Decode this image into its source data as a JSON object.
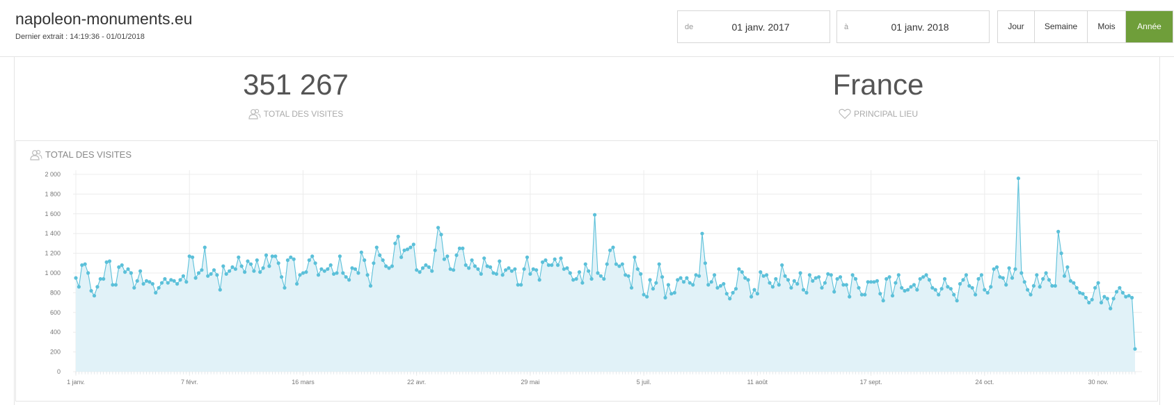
{
  "header": {
    "site": "napoleon-monuments.eu",
    "last_extract": "Dernier extrait : 14:19:36 - 01/01/2018",
    "from_label": "de",
    "from_value": "01 janv. 2017",
    "to_label": "à",
    "to_value": "01 janv. 2018",
    "periods": [
      "Jour",
      "Semaine",
      "Mois",
      "Année"
    ],
    "active_period": "Année"
  },
  "kpis": [
    {
      "value": "351 267",
      "label": "TOTAL DES VISITES",
      "icon": "users-icon"
    },
    {
      "value": "France",
      "label": "PRINCIPAL LIEU",
      "icon": "heart-icon"
    }
  ],
  "colors": {
    "accent": "#6f9e3a",
    "series_line": "#5bc0d9",
    "series_fill": "#e1f2f8"
  },
  "chart_data": {
    "type": "area",
    "title": "TOTAL DES VISITES",
    "x_start": "2017-01-01",
    "x_interval_days": 1,
    "x_ticks": [
      "1 janv.",
      "7 févr.",
      "16 mars",
      "22 avr.",
      "29 mai",
      "5 juil.",
      "11 août",
      "17 sept.",
      "24 oct.",
      "30 nov."
    ],
    "y_ticks": [
      "0",
      "200",
      "400",
      "600",
      "800",
      "1 000",
      "1 200",
      "1 400",
      "1 600",
      "1 800",
      "2 000"
    ],
    "ylim": [
      0,
      2000
    ],
    "grid": true,
    "legend": false,
    "values": [
      950,
      860,
      1080,
      1090,
      1000,
      820,
      770,
      860,
      940,
      940,
      1110,
      1120,
      880,
      880,
      1060,
      1080,
      1010,
      1040,
      1000,
      850,
      920,
      1020,
      890,
      920,
      910,
      890,
      800,
      850,
      900,
      940,
      900,
      930,
      920,
      890,
      930,
      970,
      910,
      1170,
      1160,
      950,
      1000,
      1030,
      1260,
      970,
      990,
      1030,
      980,
      830,
      1070,
      990,
      1020,
      1060,
      1040,
      1160,
      1070,
      1010,
      1120,
      1090,
      1020,
      1130,
      1010,
      1050,
      1180,
      1070,
      1170,
      1170,
      1100,
      960,
      850,
      1130,
      1160,
      1140,
      890,
      980,
      1000,
      1010,
      1130,
      1170,
      1100,
      980,
      1040,
      1020,
      1040,
      1080,
      990,
      1000,
      1170,
      1000,
      960,
      930,
      1050,
      1040,
      1000,
      1210,
      1130,
      980,
      870,
      1100,
      1260,
      1180,
      1130,
      1070,
      1050,
      1070,
      1300,
      1370,
      1160,
      1230,
      1240,
      1260,
      1290,
      1030,
      1010,
      1050,
      1080,
      1060,
      1020,
      1230,
      1460,
      1390,
      1140,
      1170,
      1040,
      1030,
      1180,
      1250,
      1250,
      1080,
      1050,
      1130,
      1070,
      1040,
      990,
      1150,
      1070,
      1060,
      1000,
      990,
      1120,
      980,
      1030,
      1050,
      1020,
      1040,
      880,
      880,
      1040,
      1160,
      990,
      1040,
      1030,
      930,
      1110,
      1130,
      1080,
      1080,
      1140,
      1080,
      1150,
      1040,
      1050,
      1000,
      930,
      940,
      1010,
      900,
      1090,
      1020,
      940,
      1590,
      1000,
      970,
      940,
      1090,
      1230,
      1260,
      1090,
      1070,
      1090,
      980,
      970,
      850,
      1160,
      1040,
      990,
      780,
      760,
      930,
      840,
      900,
      1090,
      960,
      750,
      880,
      790,
      800,
      930,
      950,
      910,
      950,
      900,
      880,
      980,
      970,
      1400,
      1100,
      880,
      910,
      980,
      850,
      870,
      890,
      790,
      740,
      800,
      840,
      1040,
      1010,
      950,
      930,
      760,
      830,
      790,
      1010,
      970,
      980,
      900,
      860,
      940,
      880,
      1080,
      970,
      930,
      850,
      920,
      890,
      1000,
      830,
      800,
      980,
      920,
      950,
      960,
      850,
      900,
      990,
      980,
      810,
      940,
      960,
      880,
      880,
      760,
      980,
      940,
      850,
      780,
      780,
      910,
      910,
      910,
      920,
      790,
      720,
      940,
      960,
      770,
      900,
      980,
      850,
      820,
      830,
      860,
      880,
      830,
      940,
      960,
      980,
      930,
      850,
      830,
      780,
      840,
      940,
      860,
      840,
      780,
      720,
      890,
      930,
      980,
      870,
      850,
      780,
      940,
      980,
      830,
      800,
      860,
      1040,
      1060,
      960,
      950,
      880,
      1050,
      950,
      1040,
      1960,
      1000,
      910,
      830,
      780,
      870,
      980,
      860,
      940,
      1000,
      930,
      870,
      870,
      1420,
      1200,
      970,
      1060,
      920,
      900,
      850,
      800,
      790,
      750,
      700,
      730,
      850,
      900,
      700,
      760,
      740,
      640,
      740,
      810,
      850,
      800,
      760,
      770,
      750,
      230
    ]
  }
}
